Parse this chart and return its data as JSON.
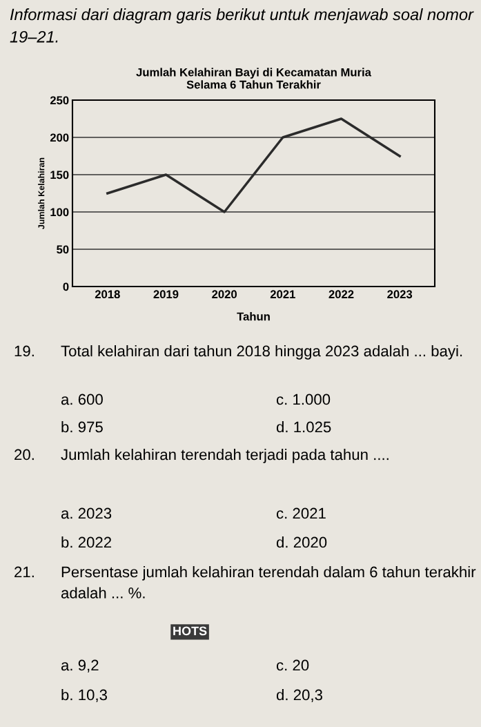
{
  "chart_data": {
    "type": "line",
    "title": "Jumlah Kelahiran Bayi di Kecamatan Muria\nSelama 6 Tahun Terakhir",
    "xlabel": "Tahun",
    "ylabel": "Jumlah Kelahiran",
    "categories": [
      "2018",
      "2019",
      "2020",
      "2021",
      "2022",
      "2023"
    ],
    "series": [
      {
        "color": "#2b2b2b",
        "values": [
          125,
          150,
          100,
          200,
          225,
          175
        ]
      }
    ],
    "ylim": [
      0,
      250
    ],
    "yticks": [
      0,
      50,
      100,
      150,
      200,
      250
    ],
    "grid": "y",
    "legend": false,
    "marker": "none",
    "line_style": "solid",
    "annotations": [
      "Informasi dari diagram garis berikut untuk menjawab soal nomor 19–21.",
      "19.",
      "Total kelahiran dari tahun 2018 hingga 2023 adalah ... bayi.",
      "a. 600",
      "c. 1.000",
      "b. 975",
      "d. 1.025",
      "20.",
      "Jumlah kelahiran terendah terjadi pada tahun ....",
      "a. 2023",
      "c. 2021",
      "b. 2022",
      "d. 2020",
      "21.",
      "Persentase jumlah kelahiran terendah dalam 6 tahun terakhir adalah ... %.",
      "HOTS",
      "a. 9,2",
      "c. 20",
      "b. 10,3",
      "d. 20,3"
    ]
  }
}
